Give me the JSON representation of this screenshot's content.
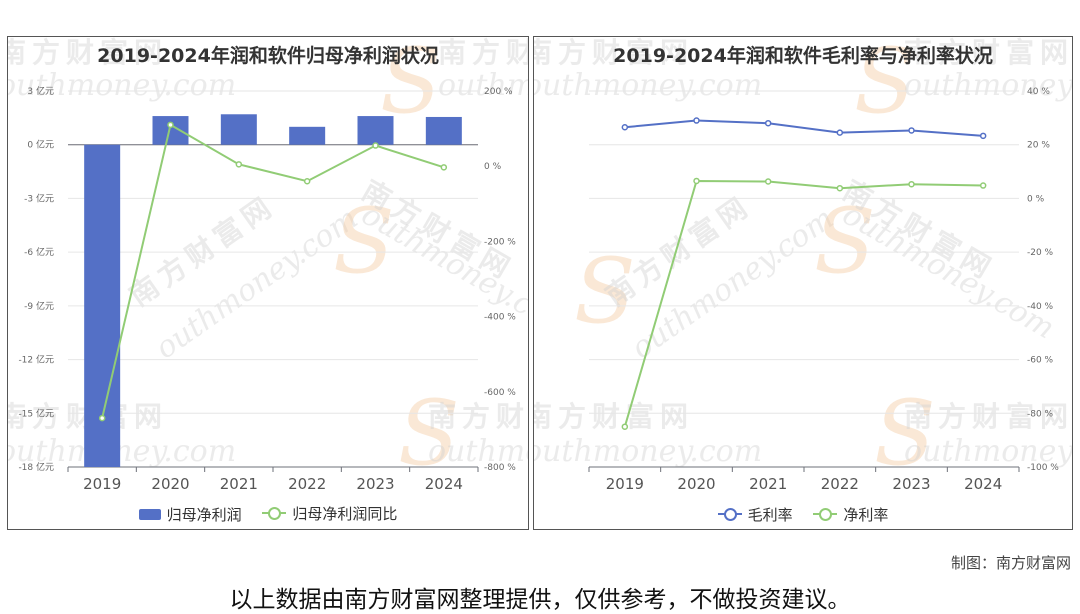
{
  "colors": {
    "bar": "#5470c6",
    "green": "#91cc75",
    "blue": "#5470c6",
    "grid": "#e6e6e6",
    "axis": "#666666"
  },
  "watermark": {
    "cn": "南方财富网",
    "en": "outhmoney.com",
    "s": "S"
  },
  "chart_data": [
    {
      "type": "bar",
      "title": "2019-2024年润和软件归母净利润状况",
      "categories": [
        "2019",
        "2020",
        "2021",
        "2022",
        "2023",
        "2024"
      ],
      "series": [
        {
          "name": "归母净利润",
          "type": "bar",
          "axis": "left",
          "values": [
            -18.0,
            1.6,
            1.7,
            1.0,
            1.6,
            1.55
          ]
        },
        {
          "name": "归母净利润同比",
          "type": "line",
          "axis": "right",
          "values": [
            -670,
            110,
            5,
            -40,
            55,
            -3
          ]
        }
      ],
      "left_axis": {
        "min": -18,
        "max": 3,
        "ticks": [
          3,
          0,
          -3,
          -6,
          -9,
          -12,
          -15,
          -18
        ],
        "unit": "亿元"
      },
      "right_axis": {
        "min": -800,
        "max": 200,
        "ticks": [
          200,
          0,
          -200,
          -400,
          -600,
          -800
        ],
        "unit": "%"
      },
      "grid": true,
      "legend_position": "bottom"
    },
    {
      "type": "line",
      "title": "2019-2024年润和软件毛利率与净利率状况",
      "categories": [
        "2019",
        "2020",
        "2021",
        "2022",
        "2023",
        "2024"
      ],
      "series": [
        {
          "name": "毛利率",
          "values": [
            26.5,
            29.0,
            28.0,
            24.5,
            25.3,
            23.3
          ]
        },
        {
          "name": "净利率",
          "values": [
            -85.0,
            6.5,
            6.3,
            3.8,
            5.3,
            4.8
          ]
        }
      ],
      "right_axis": {
        "min": -100,
        "max": 40,
        "ticks": [
          40,
          20,
          0,
          -20,
          -40,
          -60,
          -80,
          -100
        ],
        "unit": "%"
      },
      "grid": true,
      "legend_position": "bottom"
    }
  ],
  "credit": "制图：南方财富网",
  "footer_note": "以上数据由南方财富网整理提供，仅供参考，不做投资建议。"
}
